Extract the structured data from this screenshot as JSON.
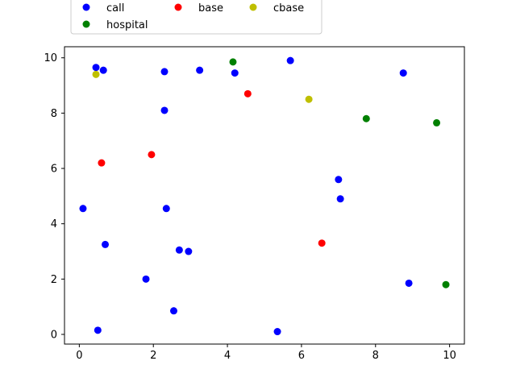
{
  "chart_data": {
    "type": "scatter",
    "title": "",
    "xlabel": "",
    "ylabel": "",
    "xlim": [
      -0.4,
      10.4
    ],
    "ylim": [
      -0.35,
      10.4
    ],
    "xticks": [
      0,
      2,
      4,
      6,
      8,
      10
    ],
    "yticks": [
      0,
      2,
      4,
      6,
      8,
      10
    ],
    "xtick_labels": [
      "0",
      "2",
      "4",
      "6",
      "8",
      "10"
    ],
    "ytick_labels": [
      "0",
      "2",
      "4",
      "6",
      "8",
      "10"
    ],
    "grid": false,
    "legend": {
      "placement": "top-left-outside",
      "columns": 3
    },
    "series": [
      {
        "name": "call",
        "color": "#0000ff",
        "points": [
          [
            0.45,
            9.65
          ],
          [
            0.65,
            9.55
          ],
          [
            2.3,
            9.5
          ],
          [
            3.25,
            9.55
          ],
          [
            4.2,
            9.45
          ],
          [
            5.7,
            9.9
          ],
          [
            8.75,
            9.45
          ],
          [
            2.3,
            8.1
          ],
          [
            7.0,
            5.6
          ],
          [
            7.05,
            4.9
          ],
          [
            0.1,
            4.55
          ],
          [
            2.35,
            4.55
          ],
          [
            0.7,
            3.25
          ],
          [
            2.7,
            3.05
          ],
          [
            2.95,
            3.0
          ],
          [
            1.8,
            2.0
          ],
          [
            8.9,
            1.85
          ],
          [
            2.55,
            0.85
          ],
          [
            0.5,
            0.15
          ],
          [
            5.35,
            0.1
          ]
        ]
      },
      {
        "name": "base",
        "color": "#ff0000",
        "points": [
          [
            4.55,
            8.7
          ],
          [
            1.95,
            6.5
          ],
          [
            0.6,
            6.2
          ],
          [
            6.55,
            3.3
          ]
        ]
      },
      {
        "name": "cbase",
        "color": "#bfbf00",
        "points": [
          [
            0.45,
            9.4
          ],
          [
            6.2,
            8.5
          ]
        ]
      },
      {
        "name": "hospital",
        "color": "#008000",
        "points": [
          [
            4.15,
            9.85
          ],
          [
            7.75,
            7.8
          ],
          [
            9.65,
            7.65
          ],
          [
            9.9,
            1.8
          ]
        ]
      }
    ]
  }
}
